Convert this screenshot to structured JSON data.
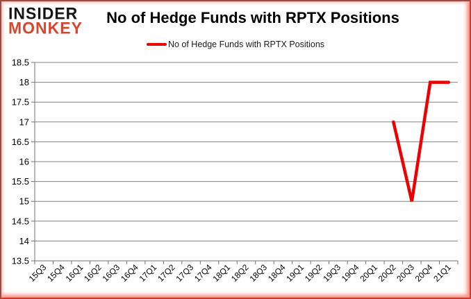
{
  "brand": {
    "line1": "INSIDER",
    "line2": "MONKEY",
    "color_line1": "#151515",
    "color_line2": "#d7462e"
  },
  "header": {
    "title": "No of Hedge Funds with RPTX Positions"
  },
  "legend": {
    "label": "No of Hedge Funds with RPTX Positions",
    "line_color": "#ee0000"
  },
  "chart_data": {
    "type": "line",
    "title": "No of Hedge Funds with RPTX Positions",
    "categories": [
      "15Q3",
      "15Q4",
      "16Q1",
      "16Q2",
      "16Q3",
      "16Q4",
      "17Q1",
      "17Q2",
      "17Q3",
      "17Q4",
      "18Q1",
      "18Q2",
      "18Q3",
      "18Q4",
      "19Q1",
      "19Q2",
      "19Q3",
      "19Q4",
      "20Q1",
      "20Q2",
      "20Q3",
      "20Q4",
      "21Q1"
    ],
    "series": [
      {
        "name": "No of Hedge Funds with RPTX Positions",
        "color": "#ee0000",
        "values": [
          null,
          null,
          null,
          null,
          null,
          null,
          null,
          null,
          null,
          null,
          null,
          null,
          null,
          null,
          null,
          null,
          null,
          null,
          null,
          17,
          15,
          18,
          18
        ]
      }
    ],
    "xlabel": "",
    "ylabel": "",
    "ylim": [
      13.5,
      18.5
    ],
    "yticks": [
      13.5,
      14,
      14.5,
      15,
      15.5,
      16,
      16.5,
      17,
      17.5,
      18,
      18.5
    ],
    "grid": true,
    "gridline_color": "#808080",
    "axis_color": "#707070",
    "legend_position": "top"
  }
}
